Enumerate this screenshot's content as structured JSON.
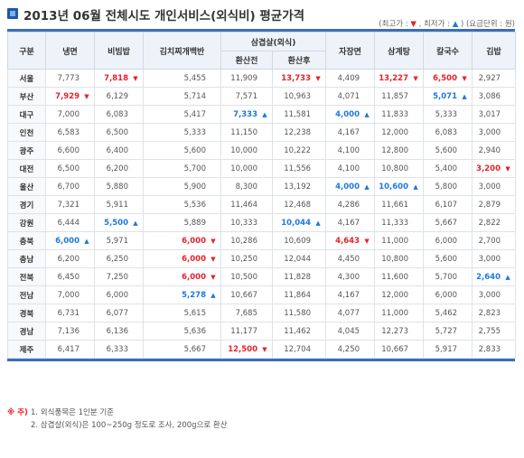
{
  "title": "2013년 06월 전체시도 개인서비스(외식비) 평균가격",
  "legend": {
    "open": "(최고가 :",
    "max_mark": "▼",
    "sep": ", 최저가 :",
    "min_mark": "▲",
    "close": ") (요금단위 : 원)"
  },
  "headers": {
    "region": "구분",
    "naengmyeon": "냉면",
    "bibimbap": "비빔밥",
    "kimchi": "김치찌개백반",
    "samgyeop_group": "삼겹살(외식)",
    "samgyeop_before": "환산전",
    "samgyeop_after": "환산후",
    "jjajang": "자장면",
    "samgyetang": "삼계탕",
    "kalguksu": "칼국수",
    "gimbap": "김밥"
  },
  "rows": [
    {
      "region": "서울",
      "cells": [
        [
          "7,773",
          ""
        ],
        [
          "7,818",
          "up"
        ],
        [
          "5,455",
          ""
        ],
        [
          "11,909",
          ""
        ],
        [
          "13,733",
          "up"
        ],
        [
          "4,409",
          ""
        ],
        [
          "13,227",
          "up"
        ],
        [
          "6,500",
          "up"
        ],
        [
          "2,927",
          ""
        ]
      ]
    },
    {
      "region": "부산",
      "cells": [
        [
          "7,929",
          "up"
        ],
        [
          "6,129",
          ""
        ],
        [
          "5,714",
          ""
        ],
        [
          "7,571",
          ""
        ],
        [
          "10,963",
          ""
        ],
        [
          "4,071",
          ""
        ],
        [
          "11,857",
          ""
        ],
        [
          "5,071",
          "down"
        ],
        [
          "3,086",
          ""
        ]
      ]
    },
    {
      "region": "대구",
      "cells": [
        [
          "7,000",
          ""
        ],
        [
          "6,083",
          ""
        ],
        [
          "5,417",
          ""
        ],
        [
          "7,333",
          "down"
        ],
        [
          "11,581",
          ""
        ],
        [
          "4,000",
          "down"
        ],
        [
          "11,833",
          ""
        ],
        [
          "5,333",
          ""
        ],
        [
          "3,017",
          ""
        ]
      ]
    },
    {
      "region": "인천",
      "cells": [
        [
          "6,583",
          ""
        ],
        [
          "6,500",
          ""
        ],
        [
          "5,333",
          ""
        ],
        [
          "11,150",
          ""
        ],
        [
          "12,238",
          ""
        ],
        [
          "4,167",
          ""
        ],
        [
          "12,000",
          ""
        ],
        [
          "6,083",
          ""
        ],
        [
          "3,000",
          ""
        ]
      ]
    },
    {
      "region": "광주",
      "cells": [
        [
          "6,600",
          ""
        ],
        [
          "6,400",
          ""
        ],
        [
          "5,600",
          ""
        ],
        [
          "10,000",
          ""
        ],
        [
          "10,222",
          ""
        ],
        [
          "4,100",
          ""
        ],
        [
          "12,800",
          ""
        ],
        [
          "5,600",
          ""
        ],
        [
          "2,940",
          ""
        ]
      ]
    },
    {
      "region": "대전",
      "cells": [
        [
          "6,500",
          ""
        ],
        [
          "6,200",
          ""
        ],
        [
          "5,700",
          ""
        ],
        [
          "10,000",
          ""
        ],
        [
          "11,556",
          ""
        ],
        [
          "4,100",
          ""
        ],
        [
          "10,800",
          ""
        ],
        [
          "5,400",
          ""
        ],
        [
          "3,200",
          "up"
        ]
      ]
    },
    {
      "region": "울산",
      "cells": [
        [
          "6,700",
          ""
        ],
        [
          "5,880",
          ""
        ],
        [
          "5,900",
          ""
        ],
        [
          "8,300",
          ""
        ],
        [
          "13,192",
          ""
        ],
        [
          "4,000",
          "down"
        ],
        [
          "10,600",
          "down"
        ],
        [
          "5,800",
          ""
        ],
        [
          "3,000",
          ""
        ]
      ]
    },
    {
      "region": "경기",
      "cells": [
        [
          "7,321",
          ""
        ],
        [
          "5,911",
          ""
        ],
        [
          "5,536",
          ""
        ],
        [
          "11,464",
          ""
        ],
        [
          "12,468",
          ""
        ],
        [
          "4,286",
          ""
        ],
        [
          "11,661",
          ""
        ],
        [
          "6,107",
          ""
        ],
        [
          "2,879",
          ""
        ]
      ]
    },
    {
      "region": "강원",
      "cells": [
        [
          "6,444",
          ""
        ],
        [
          "5,500",
          "down"
        ],
        [
          "5,889",
          ""
        ],
        [
          "10,333",
          ""
        ],
        [
          "10,044",
          "down"
        ],
        [
          "4,167",
          ""
        ],
        [
          "11,333",
          ""
        ],
        [
          "5,667",
          ""
        ],
        [
          "2,822",
          ""
        ]
      ]
    },
    {
      "region": "충북",
      "cells": [
        [
          "6,000",
          "down"
        ],
        [
          "5,971",
          ""
        ],
        [
          "6,000",
          "up"
        ],
        [
          "10,286",
          ""
        ],
        [
          "10,609",
          ""
        ],
        [
          "4,643",
          "up"
        ],
        [
          "11,000",
          ""
        ],
        [
          "6,000",
          ""
        ],
        [
          "2,700",
          ""
        ]
      ]
    },
    {
      "region": "충남",
      "cells": [
        [
          "6,200",
          ""
        ],
        [
          "6,250",
          ""
        ],
        [
          "6,000",
          "up"
        ],
        [
          "10,250",
          ""
        ],
        [
          "12,044",
          ""
        ],
        [
          "4,450",
          ""
        ],
        [
          "10,800",
          ""
        ],
        [
          "5,600",
          ""
        ],
        [
          "3,000",
          ""
        ]
      ]
    },
    {
      "region": "전북",
      "cells": [
        [
          "6,450",
          ""
        ],
        [
          "7,250",
          ""
        ],
        [
          "6,000",
          "up"
        ],
        [
          "10,500",
          ""
        ],
        [
          "11,828",
          ""
        ],
        [
          "4,300",
          ""
        ],
        [
          "11,600",
          ""
        ],
        [
          "5,700",
          ""
        ],
        [
          "2,640",
          "down"
        ]
      ]
    },
    {
      "region": "전남",
      "cells": [
        [
          "7,000",
          ""
        ],
        [
          "6,000",
          ""
        ],
        [
          "5,278",
          "down"
        ],
        [
          "10,667",
          ""
        ],
        [
          "11,864",
          ""
        ],
        [
          "4,167",
          ""
        ],
        [
          "12,000",
          ""
        ],
        [
          "6,000",
          ""
        ],
        [
          "3,000",
          ""
        ]
      ]
    },
    {
      "region": "경북",
      "cells": [
        [
          "6,731",
          ""
        ],
        [
          "6,077",
          ""
        ],
        [
          "5,615",
          ""
        ],
        [
          "7,685",
          ""
        ],
        [
          "11,580",
          ""
        ],
        [
          "4,077",
          ""
        ],
        [
          "11,000",
          ""
        ],
        [
          "5,462",
          ""
        ],
        [
          "2,823",
          ""
        ]
      ]
    },
    {
      "region": "경남",
      "cells": [
        [
          "7,136",
          ""
        ],
        [
          "6,136",
          ""
        ],
        [
          "5,636",
          ""
        ],
        [
          "11,177",
          ""
        ],
        [
          "11,462",
          ""
        ],
        [
          "4,045",
          ""
        ],
        [
          "12,273",
          ""
        ],
        [
          "5,727",
          ""
        ],
        [
          "2,755",
          ""
        ]
      ]
    },
    {
      "region": "제주",
      "cells": [
        [
          "6,417",
          ""
        ],
        [
          "6,333",
          ""
        ],
        [
          "5,667",
          ""
        ],
        [
          "12,500",
          "up"
        ],
        [
          "12,704",
          ""
        ],
        [
          "4,250",
          ""
        ],
        [
          "10,667",
          ""
        ],
        [
          "5,917",
          ""
        ],
        [
          "2,833",
          ""
        ]
      ]
    }
  ],
  "marks": {
    "up": "▼",
    "down": "▲"
  },
  "colors": {
    "up": "#e8202a",
    "down": "#1e78e0",
    "border": "#3b6fb6"
  },
  "notes": {
    "head": "※ 주)",
    "line1": "1. 외식품목은 1인분 기준",
    "line2": "2. 삼겹살(외식)은 100~250g 정도로 조사, 200g으로 환산"
  }
}
